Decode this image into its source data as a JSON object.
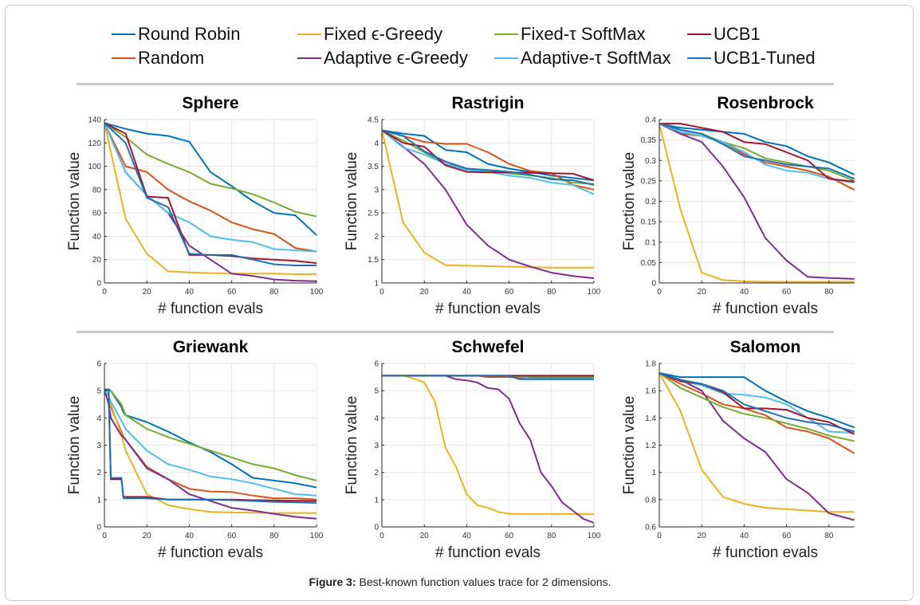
{
  "legend": [
    {
      "name": "Round Robin",
      "color": "#0072BD"
    },
    {
      "name": "Fixed ϵ-Greedy",
      "color": "#EDB120"
    },
    {
      "name": "Fixed-τ SoftMax",
      "color": "#77AC30"
    },
    {
      "name": "UCB1",
      "color": "#A2142F"
    },
    {
      "name": "Random",
      "color": "#D95319"
    },
    {
      "name": "Adaptive ϵ-Greedy",
      "color": "#7E2F8E"
    },
    {
      "name": "Adaptive-τ SoftMax",
      "color": "#4DBEEE"
    },
    {
      "name": "UCB1-Tuned",
      "color": "#1F6FB5"
    }
  ],
  "caption": {
    "label": "Figure 3:",
    "text": " Best-known function values trace for 2 dimensions."
  },
  "chart_data": [
    {
      "type": "line",
      "title": "Sphere",
      "xlabel": "# function evals",
      "ylabel": "Function value",
      "xlim": [
        0,
        100
      ],
      "ylim": [
        0,
        140
      ],
      "xticks": [
        0,
        20,
        40,
        60,
        80,
        100
      ],
      "yticks": [
        0,
        20,
        40,
        60,
        80,
        100,
        120,
        140
      ],
      "x": [
        0,
        10,
        20,
        30,
        40,
        50,
        60,
        70,
        80,
        90,
        100
      ],
      "series": [
        {
          "name": "Round Robin",
          "values": [
            137,
            132,
            128,
            126,
            121,
            95,
            83,
            70,
            60,
            58,
            41
          ]
        },
        {
          "name": "Random",
          "values": [
            137,
            100,
            95,
            80,
            70,
            62,
            52,
            46,
            42,
            30,
            27
          ]
        },
        {
          "name": "Fixed ϵ-Greedy",
          "values": [
            137,
            55,
            25,
            10,
            9,
            8.5,
            8,
            8,
            8,
            7.5,
            7.5
          ]
        },
        {
          "name": "Adaptive ϵ-Greedy",
          "values": [
            137,
            95,
            75,
            60,
            32,
            20,
            8,
            6,
            3,
            2,
            1.5
          ]
        },
        {
          "name": "Fixed-τ SoftMax",
          "values": [
            137,
            125,
            110,
            102,
            95,
            85,
            81,
            76,
            69,
            61,
            57
          ]
        },
        {
          "name": "Adaptive-τ SoftMax",
          "values": [
            137,
            95,
            75,
            60,
            52,
            40,
            37,
            35,
            29,
            28,
            27
          ]
        },
        {
          "name": "UCB1",
          "values": [
            137,
            128,
            74,
            73,
            24,
            24,
            23,
            21,
            20,
            19,
            17
          ]
        },
        {
          "name": "UCB1-Tuned",
          "values": [
            137,
            120,
            73,
            65,
            25,
            24,
            24,
            20,
            16,
            15,
            15
          ]
        }
      ]
    },
    {
      "type": "line",
      "title": "Rastrigin",
      "xlabel": "# function evals",
      "ylabel": "Function value",
      "xlim": [
        0,
        100
      ],
      "ylim": [
        1,
        4.5
      ],
      "xticks": [
        0,
        20,
        40,
        60,
        80,
        100
      ],
      "yticks": [
        1,
        1.5,
        2,
        2.5,
        3,
        3.5,
        4,
        4.5
      ],
      "x": [
        0,
        10,
        20,
        30,
        40,
        50,
        60,
        70,
        80,
        90,
        100
      ],
      "series": [
        {
          "name": "Round Robin",
          "values": [
            4.27,
            4.2,
            4.15,
            3.85,
            3.8,
            3.55,
            3.45,
            3.38,
            3.3,
            3.25,
            3.2
          ]
        },
        {
          "name": "Random",
          "values": [
            4.27,
            4.15,
            4.02,
            3.98,
            3.98,
            3.8,
            3.55,
            3.4,
            3.35,
            3.1,
            3.0
          ]
        },
        {
          "name": "Fixed ϵ-Greedy",
          "values": [
            4.27,
            2.3,
            1.65,
            1.38,
            1.37,
            1.36,
            1.35,
            1.34,
            1.33,
            1.33,
            1.33
          ]
        },
        {
          "name": "Adaptive ϵ-Greedy",
          "values": [
            4.27,
            3.92,
            3.55,
            3.0,
            2.25,
            1.8,
            1.5,
            1.35,
            1.22,
            1.15,
            1.1
          ]
        },
        {
          "name": "Fixed-τ SoftMax",
          "values": [
            4.27,
            4.05,
            3.8,
            3.55,
            3.45,
            3.4,
            3.35,
            3.3,
            3.25,
            3.15,
            3.12
          ]
        },
        {
          "name": "Adaptive-τ SoftMax",
          "values": [
            4.27,
            3.9,
            3.75,
            3.55,
            3.42,
            3.38,
            3.3,
            3.25,
            3.15,
            3.1,
            2.9
          ]
        },
        {
          "name": "UCB1",
          "values": [
            4.27,
            4.0,
            3.92,
            3.52,
            3.38,
            3.37,
            3.37,
            3.36,
            3.35,
            3.34,
            3.2
          ]
        },
        {
          "name": "UCB1-Tuned",
          "values": [
            4.27,
            4.15,
            3.82,
            3.6,
            3.45,
            3.42,
            3.38,
            3.32,
            3.22,
            3.2,
            3.1
          ]
        }
      ]
    },
    {
      "type": "line",
      "title": "Rosenbrock",
      "xlabel": "# function evals",
      "ylabel": "Function value",
      "xlim": [
        0,
        92
      ],
      "ylim": [
        0,
        0.4
      ],
      "xticks": [
        0,
        20,
        40,
        60,
        80
      ],
      "yticks": [
        0,
        0.05,
        0.1,
        0.15,
        0.2,
        0.25,
        0.3,
        0.35,
        0.4
      ],
      "x": [
        0,
        10,
        20,
        30,
        40,
        50,
        60,
        70,
        80,
        92
      ],
      "series": [
        {
          "name": "Round Robin",
          "values": [
            0.39,
            0.38,
            0.375,
            0.37,
            0.365,
            0.345,
            0.335,
            0.31,
            0.295,
            0.265
          ]
        },
        {
          "name": "Random",
          "values": [
            0.39,
            0.365,
            0.36,
            0.345,
            0.315,
            0.295,
            0.285,
            0.275,
            0.26,
            0.228
          ]
        },
        {
          "name": "Fixed ϵ-Greedy",
          "values": [
            0.39,
            0.18,
            0.025,
            0.007,
            0.004,
            0.003,
            0.003,
            0.003,
            0.003,
            0.003
          ]
        },
        {
          "name": "Adaptive ϵ-Greedy",
          "values": [
            0.39,
            0.365,
            0.345,
            0.285,
            0.21,
            0.11,
            0.055,
            0.015,
            0.012,
            0.01
          ]
        },
        {
          "name": "Fixed-τ SoftMax",
          "values": [
            0.39,
            0.375,
            0.365,
            0.345,
            0.33,
            0.305,
            0.295,
            0.285,
            0.275,
            0.25
          ]
        },
        {
          "name": "Adaptive-τ SoftMax",
          "values": [
            0.39,
            0.37,
            0.36,
            0.345,
            0.32,
            0.29,
            0.275,
            0.27,
            0.255,
            0.245
          ]
        },
        {
          "name": "UCB1",
          "values": [
            0.39,
            0.39,
            0.38,
            0.37,
            0.345,
            0.34,
            0.32,
            0.3,
            0.255,
            0.248
          ]
        },
        {
          "name": "UCB1-Tuned",
          "values": [
            0.39,
            0.375,
            0.365,
            0.34,
            0.31,
            0.3,
            0.29,
            0.285,
            0.28,
            0.255
          ]
        }
      ]
    },
    {
      "type": "line",
      "title": "Griewank",
      "xlabel": "# function evals",
      "ylabel": "Function value",
      "xlim": [
        0,
        100
      ],
      "ylim": [
        0,
        6
      ],
      "xticks": [
        0,
        20,
        40,
        60,
        80,
        100
      ],
      "yticks": [
        0,
        1,
        2,
        3,
        4,
        5,
        6
      ],
      "x": [
        0,
        2,
        3,
        8,
        9,
        10,
        20,
        30,
        40,
        50,
        60,
        70,
        80,
        90,
        100
      ],
      "series": [
        {
          "name": "Round Robin",
          "values": [
            5.05,
            5.05,
            5.0,
            4.4,
            4.2,
            4.1,
            3.85,
            3.5,
            3.1,
            2.75,
            2.3,
            1.8,
            1.7,
            1.6,
            1.45
          ]
        },
        {
          "name": "Random",
          "values": [
            5.05,
            4.8,
            4.4,
            3.5,
            3.3,
            3.2,
            2.2,
            1.75,
            1.4,
            1.3,
            1.28,
            1.15,
            1.05,
            1.05,
            1.0
          ]
        },
        {
          "name": "Fixed ϵ-Greedy",
          "values": [
            5.05,
            4.8,
            4.5,
            3.4,
            3.1,
            2.8,
            1.2,
            0.8,
            0.65,
            0.55,
            0.53,
            0.52,
            0.51,
            0.51,
            0.51
          ]
        },
        {
          "name": "Adaptive ϵ-Greedy",
          "values": [
            5.05,
            4.5,
            4.0,
            3.35,
            3.3,
            3.2,
            2.15,
            1.75,
            1.2,
            0.95,
            0.7,
            0.6,
            0.48,
            0.37,
            0.3
          ]
        },
        {
          "name": "Fixed-τ SoftMax",
          "values": [
            5.05,
            5.0,
            5.0,
            4.5,
            4.3,
            4.1,
            3.6,
            3.3,
            3.05,
            2.8,
            2.55,
            2.3,
            2.15,
            1.9,
            1.7
          ]
        },
        {
          "name": "Adaptive-τ SoftMax",
          "values": [
            5.05,
            4.8,
            4.6,
            3.9,
            3.75,
            3.6,
            2.8,
            2.3,
            2.1,
            1.85,
            1.75,
            1.6,
            1.4,
            1.2,
            1.15
          ]
        },
        {
          "name": "UCB1",
          "values": [
            5.05,
            5.0,
            1.75,
            1.75,
            1.1,
            1.1,
            1.1,
            1.0,
            1.0,
            1.0,
            1.0,
            0.98,
            0.97,
            0.96,
            0.95
          ]
        },
        {
          "name": "UCB1-Tuned",
          "values": [
            5.05,
            5.0,
            1.8,
            1.8,
            1.05,
            1.05,
            1.05,
            1.0,
            1.0,
            1.0,
            0.98,
            0.95,
            0.92,
            0.9,
            0.88
          ]
        }
      ]
    },
    {
      "type": "line",
      "title": "Schwefel",
      "xlabel": "# function evals",
      "ylabel": "Function value",
      "xlim": [
        0,
        100
      ],
      "ylim": [
        0,
        6
      ],
      "xticks": [
        0,
        20,
        40,
        60,
        80,
        100
      ],
      "yticks": [
        0,
        1,
        2,
        3,
        4,
        5,
        6
      ],
      "x": [
        0,
        10,
        15,
        20,
        25,
        30,
        35,
        40,
        45,
        50,
        55,
        60,
        65,
        70,
        75,
        80,
        85,
        90,
        95,
        100
      ],
      "series": [
        {
          "name": "Round Robin",
          "values": [
            5.55,
            5.55,
            5.55,
            5.55,
            5.55,
            5.55,
            5.55,
            5.55,
            5.55,
            5.55,
            5.55,
            5.55,
            5.55,
            5.55,
            5.55,
            5.55,
            5.55,
            5.55,
            5.55,
            5.55
          ]
        },
        {
          "name": "Random",
          "values": [
            5.55,
            5.55,
            5.55,
            5.55,
            5.55,
            5.55,
            5.55,
            5.55,
            5.55,
            5.5,
            5.5,
            5.5,
            5.48,
            5.48,
            5.48,
            5.48,
            5.48,
            5.48,
            5.48,
            5.48
          ]
        },
        {
          "name": "Fixed ϵ-Greedy",
          "values": [
            5.55,
            5.55,
            5.45,
            5.3,
            4.6,
            2.9,
            2.2,
            1.2,
            0.8,
            0.7,
            0.55,
            0.48,
            0.47,
            0.47,
            0.47,
            0.47,
            0.47,
            0.47,
            0.47,
            0.47
          ]
        },
        {
          "name": "Adaptive ϵ-Greedy",
          "values": [
            5.55,
            5.55,
            5.55,
            5.55,
            5.55,
            5.55,
            5.42,
            5.38,
            5.3,
            5.1,
            5.05,
            4.7,
            3.8,
            3.2,
            2.0,
            1.5,
            0.9,
            0.6,
            0.3,
            0.15
          ]
        },
        {
          "name": "Fixed-τ SoftMax",
          "values": [
            5.55,
            5.55,
            5.55,
            5.55,
            5.55,
            5.55,
            5.55,
            5.55,
            5.55,
            5.55,
            5.55,
            5.55,
            5.52,
            5.52,
            5.52,
            5.52,
            5.52,
            5.52,
            5.52,
            5.52
          ]
        },
        {
          "name": "Adaptive-τ SoftMax",
          "values": [
            5.55,
            5.55,
            5.55,
            5.55,
            5.55,
            5.55,
            5.55,
            5.55,
            5.55,
            5.55,
            5.55,
            5.55,
            5.55,
            5.44,
            5.44,
            5.44,
            5.44,
            5.44,
            5.44,
            5.44
          ]
        },
        {
          "name": "UCB1",
          "values": [
            5.55,
            5.55,
            5.55,
            5.55,
            5.55,
            5.55,
            5.55,
            5.55,
            5.55,
            5.55,
            5.55,
            5.55,
            5.55,
            5.55,
            5.55,
            5.55,
            5.55,
            5.55,
            5.55,
            5.55
          ]
        },
        {
          "name": "UCB1-Tuned",
          "values": [
            5.55,
            5.55,
            5.55,
            5.55,
            5.55,
            5.55,
            5.55,
            5.55,
            5.55,
            5.55,
            5.55,
            5.55,
            5.42,
            5.42,
            5.42,
            5.42,
            5.42,
            5.42,
            5.42,
            5.42
          ]
        }
      ]
    },
    {
      "type": "line",
      "title": "Salomon",
      "xlabel": "# function evals",
      "ylabel": "Function value",
      "xlim": [
        0,
        92
      ],
      "ylim": [
        0.6,
        1.8
      ],
      "xticks": [
        0,
        20,
        40,
        60,
        80
      ],
      "yticks": [
        0.6,
        0.8,
        1,
        1.2,
        1.4,
        1.6,
        1.8
      ],
      "x": [
        0,
        10,
        20,
        30,
        40,
        50,
        60,
        70,
        80,
        92
      ],
      "series": [
        {
          "name": "Round Robin",
          "values": [
            1.73,
            1.7,
            1.7,
            1.7,
            1.7,
            1.6,
            1.52,
            1.45,
            1.4,
            1.33
          ]
        },
        {
          "name": "Random",
          "values": [
            1.73,
            1.65,
            1.58,
            1.5,
            1.47,
            1.42,
            1.33,
            1.3,
            1.25,
            1.14
          ]
        },
        {
          "name": "Fixed ϵ-Greedy",
          "values": [
            1.73,
            1.45,
            1.02,
            0.82,
            0.77,
            0.74,
            0.73,
            0.72,
            0.71,
            0.71
          ]
        },
        {
          "name": "Adaptive ϵ-Greedy",
          "values": [
            1.73,
            1.68,
            1.6,
            1.38,
            1.25,
            1.15,
            0.95,
            0.85,
            0.7,
            0.65
          ]
        },
        {
          "name": "Fixed-τ SoftMax",
          "values": [
            1.73,
            1.62,
            1.55,
            1.48,
            1.43,
            1.4,
            1.36,
            1.32,
            1.27,
            1.23
          ]
        },
        {
          "name": "Adaptive-τ SoftMax",
          "values": [
            1.73,
            1.67,
            1.64,
            1.58,
            1.57,
            1.55,
            1.5,
            1.4,
            1.3,
            1.29
          ]
        },
        {
          "name": "UCB1",
          "values": [
            1.73,
            1.67,
            1.65,
            1.59,
            1.47,
            1.47,
            1.46,
            1.4,
            1.37,
            1.28
          ]
        },
        {
          "name": "UCB1-Tuned",
          "values": [
            1.73,
            1.68,
            1.65,
            1.6,
            1.5,
            1.45,
            1.4,
            1.37,
            1.35,
            1.3
          ]
        }
      ]
    }
  ]
}
